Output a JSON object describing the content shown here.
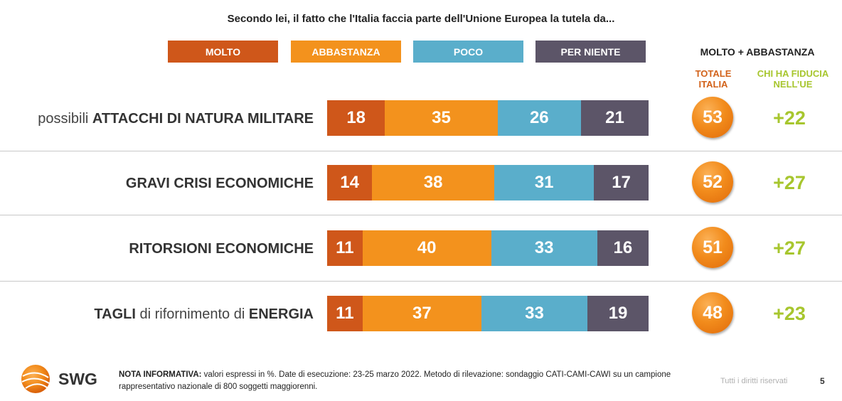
{
  "title": "Secondo lei, il fatto che l'Italia faccia parte dell'Unione Europea la tutela da...",
  "legend": [
    {
      "label": "MOLTO",
      "color": "#cf571a"
    },
    {
      "label": "ABBASTANZA",
      "color": "#f3921d"
    },
    {
      "label": "POCO",
      "color": "#5aaecb"
    },
    {
      "label": "PER NIENTE",
      "color": "#5c5568"
    }
  ],
  "headers": {
    "main": "MOLTO + ABBASTANZA",
    "totale": "TOTALE ITALIA",
    "fiducia": "CHI HA FIDUCIA NELL’UE"
  },
  "rows": [
    {
      "label_parts": [
        {
          "text": "possibili ",
          "bold": false
        },
        {
          "text": "ATTACCHI DI NATURA MILITARE",
          "bold": true
        }
      ],
      "totale": "53",
      "delta": "+22"
    },
    {
      "label_parts": [
        {
          "text": "GRAVI CRISI ECONOMICHE",
          "bold": true
        }
      ],
      "totale": "52",
      "delta": "+27"
    },
    {
      "label_parts": [
        {
          "text": "RITORSIONI ECONOMICHE",
          "bold": true
        }
      ],
      "totale": "51",
      "delta": "+27"
    },
    {
      "label_parts": [
        {
          "text": "TAGLI",
          "bold": true
        },
        {
          "text": " di rifornimento di ",
          "bold": false
        },
        {
          "text": "ENERGIA",
          "bold": true
        }
      ],
      "totale": "48",
      "delta": "+23"
    }
  ],
  "chart_data": {
    "type": "bar",
    "stacked": true,
    "orientation": "horizontal",
    "title": "Secondo lei, il fatto che l'Italia faccia parte dell'Unione Europea la tutela da...",
    "categories": [
      "possibili ATTACCHI DI NATURA MILITARE",
      "GRAVI CRISI ECONOMICHE",
      "RITORSIONI ECONOMICHE",
      "TAGLI di rifornimento di ENERGIA"
    ],
    "series": [
      {
        "name": "MOLTO",
        "values": [
          18,
          14,
          11,
          11
        ]
      },
      {
        "name": "ABBASTANZA",
        "values": [
          35,
          38,
          40,
          37
        ]
      },
      {
        "name": "POCO",
        "values": [
          26,
          31,
          33,
          33
        ]
      },
      {
        "name": "PER NIENTE",
        "values": [
          21,
          17,
          16,
          19
        ]
      }
    ],
    "legend_position": "top"
  },
  "footer": {
    "logo_text": "SWG",
    "note_label": "NOTA INFORMATIVA:",
    "note_text": " valori espressi in %. Date di esecuzione: 23-25 marzo 2022. Metodo di rilevazione: sondaggio CATI-CAMI-CAWI su un campione rappresentativo nazionale di 800 soggetti maggiorenni.",
    "rights": "Tutti i diritti riservati",
    "page": "5"
  }
}
